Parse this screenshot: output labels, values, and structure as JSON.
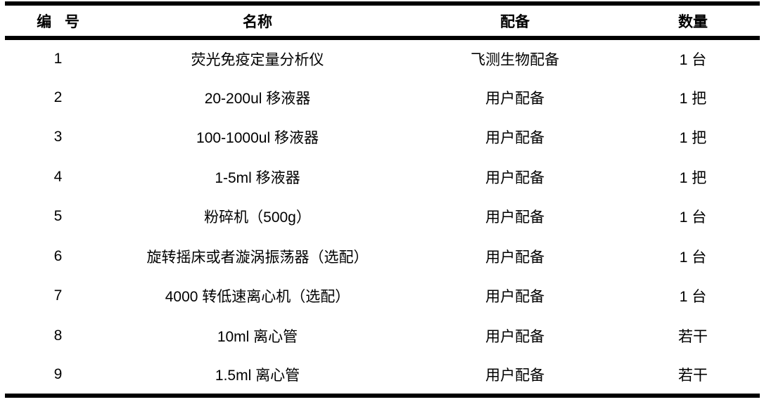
{
  "table": {
    "colors": {
      "border": "#000000",
      "text": "#000000",
      "background": "#ffffff"
    },
    "columns": [
      {
        "key": "id",
        "label": "编 号"
      },
      {
        "key": "name",
        "label": "名称"
      },
      {
        "key": "provision",
        "label": "配备"
      },
      {
        "key": "quantity",
        "label": "数量"
      }
    ],
    "rows": [
      {
        "id": "1",
        "name": "荧光免疫定量分析仪",
        "provision": "飞测生物配备",
        "quantity": "1 台"
      },
      {
        "id": "2",
        "name": "20-200ul 移液器",
        "provision": "用户配备",
        "quantity": "1 把"
      },
      {
        "id": "3",
        "name": "100-1000ul 移液器",
        "provision": "用户配备",
        "quantity": "1 把"
      },
      {
        "id": "4",
        "name": "1-5ml 移液器",
        "provision": "用户配备",
        "quantity": "1 把"
      },
      {
        "id": "5",
        "name": "粉碎机（500g）",
        "provision": "用户配备",
        "quantity": "1 台"
      },
      {
        "id": "6",
        "name": "旋转摇床或者漩涡振荡器（选配）",
        "provision": "用户配备",
        "quantity": "1 台"
      },
      {
        "id": "7",
        "name": "4000 转低速离心机（选配）",
        "provision": "用户配备",
        "quantity": "1 台"
      },
      {
        "id": "8",
        "name": "10ml 离心管",
        "provision": "用户配备",
        "quantity": "若干"
      },
      {
        "id": "9",
        "name": "1.5ml 离心管",
        "provision": "用户配备",
        "quantity": "若干"
      }
    ]
  }
}
